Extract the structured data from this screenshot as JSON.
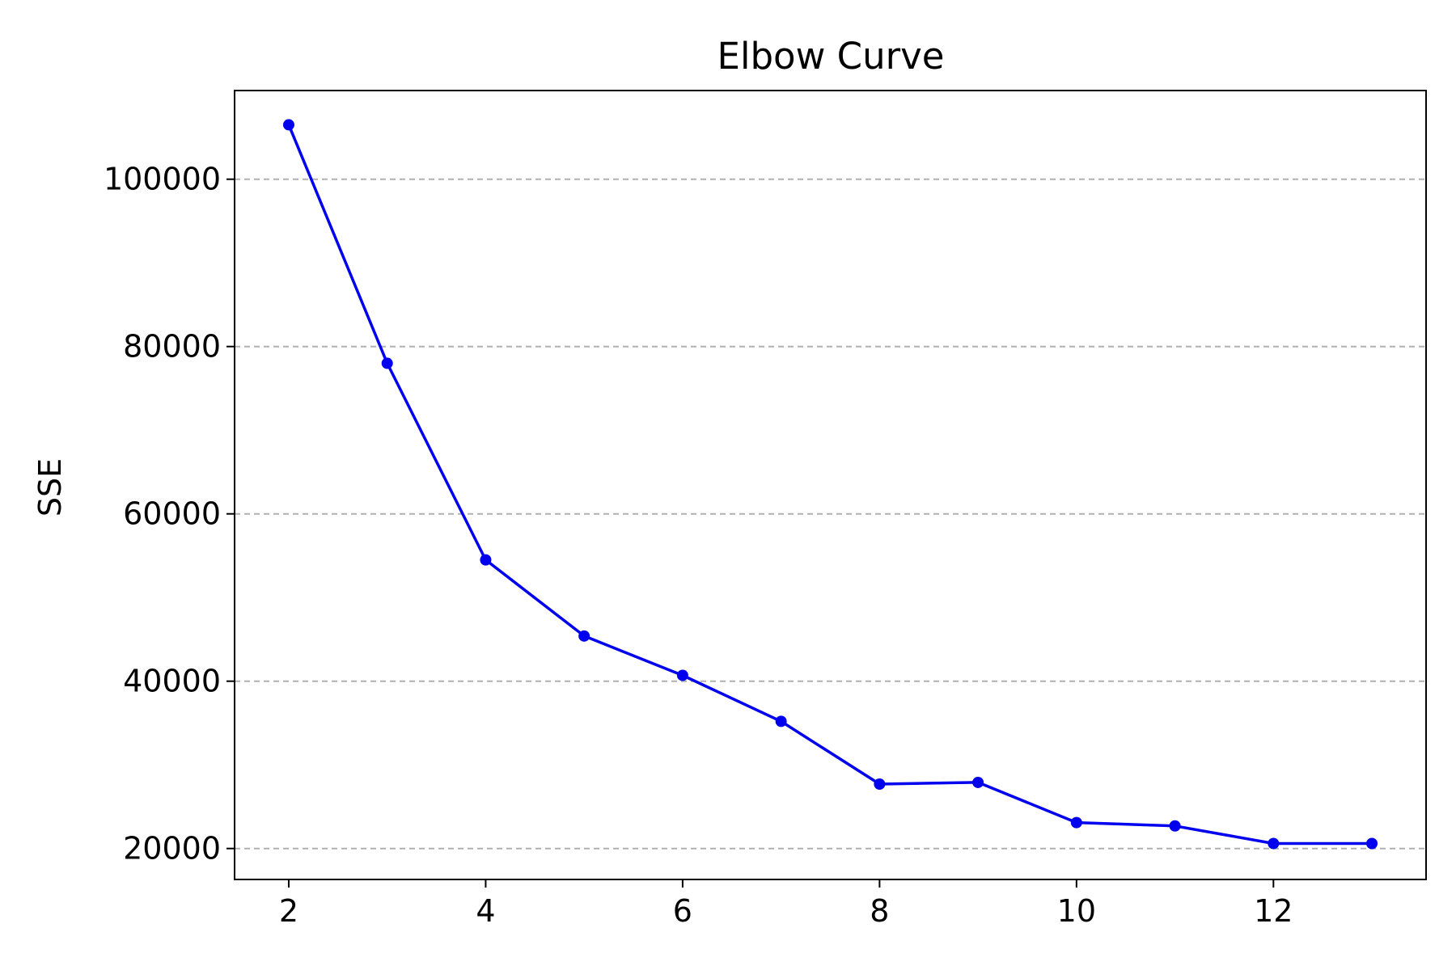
{
  "chart_data": {
    "type": "line",
    "title": "Elbow Curve",
    "xlabel": "",
    "ylabel": "SSE",
    "x": [
      2,
      3,
      4,
      5,
      6,
      7,
      8,
      9,
      10,
      11,
      12,
      13
    ],
    "series": [
      {
        "values": [
          106500,
          78000,
          54500,
          45400,
          40700,
          35200,
          27700,
          27900,
          23100,
          22700,
          20600,
          20600
        ],
        "color": "#0000ee",
        "marker": "circle"
      }
    ],
    "xlim": [
      1.45,
      13.55
    ],
    "ylim": [
      16300,
      110600
    ],
    "xticks": [
      2,
      4,
      6,
      8,
      10,
      12
    ],
    "yticks": [
      20000,
      40000,
      60000,
      80000,
      100000
    ],
    "grid": {
      "axis": "y",
      "style": "dashed",
      "color": "#b0b0b0"
    },
    "legend": "none"
  }
}
